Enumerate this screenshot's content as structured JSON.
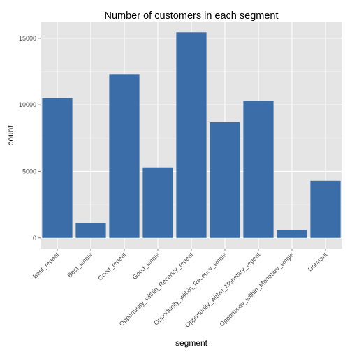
{
  "chart_data": {
    "type": "bar",
    "title": "Number of customers in each segment",
    "xlabel": "segment",
    "ylabel": "count",
    "categories": [
      "Best_repeat",
      "Best_single",
      "Good_repeat",
      "Good_single",
      "Opportunity_within_Recency_repeat",
      "Opportunity_within_Recency_single",
      "Opportunity_within_Monetary_repeat",
      "Opportunity_within_Monetary_single",
      "Dormant"
    ],
    "values": [
      10500,
      1100,
      12300,
      5300,
      15450,
      8700,
      10300,
      600,
      4300
    ],
    "y_ticks": [
      0,
      5000,
      10000,
      15000
    ],
    "ylim": [
      -800,
      16200
    ],
    "grid": true,
    "colors": {
      "bar": "#3b6ea8",
      "panel": "#e5e5e5",
      "grid_major": "#ffffff",
      "grid_minor": "#f2f2f2"
    }
  }
}
